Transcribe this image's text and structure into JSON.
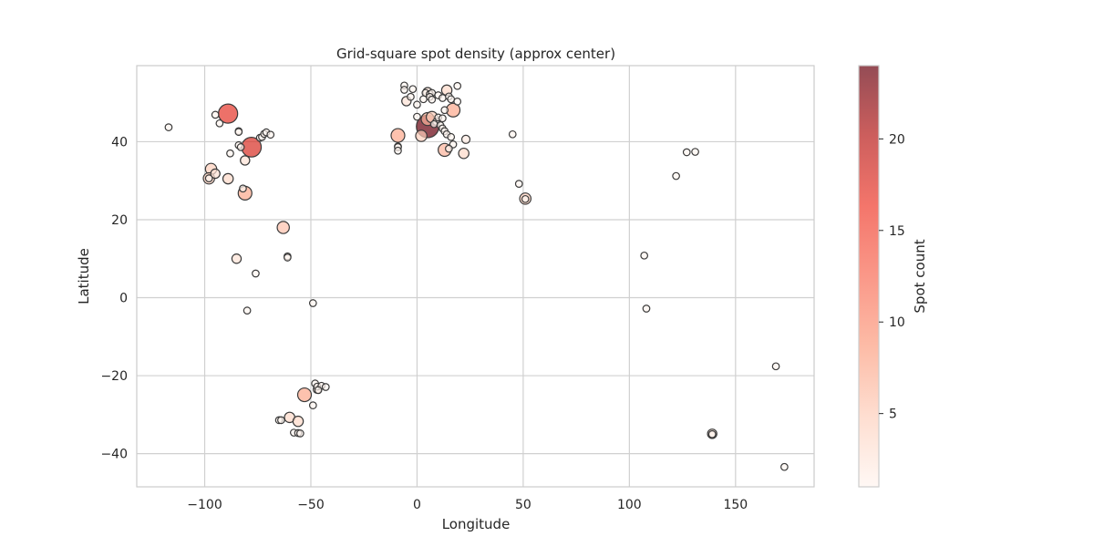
{
  "chart_data": {
    "type": "scatter",
    "title": "Grid-square spot density (approx center)",
    "xlabel": "Longitude",
    "ylabel": "Latitude",
    "xlim": [
      -132,
      187
    ],
    "ylim": [
      -48.5,
      59.5
    ],
    "xticks": [
      -100,
      -50,
      0,
      50,
      100,
      150
    ],
    "xtick_labels": [
      "−100",
      "−50",
      "0",
      "50",
      "100",
      "150"
    ],
    "yticks": [
      -40,
      -20,
      0,
      20,
      40
    ],
    "ytick_labels": [
      "−40",
      "−20",
      "0",
      "20",
      "40"
    ],
    "grid": true,
    "colorbar": {
      "label": "Spot count",
      "range": [
        1,
        24
      ],
      "ticks": [
        5,
        10,
        15,
        20
      ],
      "tick_labels": [
        "5",
        "10",
        "15",
        "20"
      ],
      "colors": [
        "#fff5f0",
        "#fdd0bd",
        "#fc9f81",
        "#f86c56",
        "#ef3b2c",
        "#b71a18",
        "#67000d"
      ],
      "alpha": 0.7
    },
    "points": [
      {
        "lon": -117,
        "lat": 43.7,
        "count": 1
      },
      {
        "lon": -95,
        "lat": 46.9,
        "count": 1
      },
      {
        "lon": -93,
        "lat": 44.7,
        "count": 1
      },
      {
        "lon": -89,
        "lat": 47.2,
        "count": 17
      },
      {
        "lon": -84,
        "lat": 42.7,
        "count": 1
      },
      {
        "lon": -84,
        "lat": 42.5,
        "count": 1
      },
      {
        "lon": -84,
        "lat": 39.1,
        "count": 1
      },
      {
        "lon": -83,
        "lat": 38.6,
        "count": 1
      },
      {
        "lon": -88,
        "lat": 37.0,
        "count": 1
      },
      {
        "lon": -81,
        "lat": 35.2,
        "count": 3
      },
      {
        "lon": -78,
        "lat": 38.6,
        "count": 18
      },
      {
        "lon": -74,
        "lat": 41.0,
        "count": 1
      },
      {
        "lon": -73,
        "lat": 41.2,
        "count": 1
      },
      {
        "lon": -72,
        "lat": 42.0,
        "count": 1
      },
      {
        "lon": -71,
        "lat": 42.4,
        "count": 1
      },
      {
        "lon": -69,
        "lat": 41.8,
        "count": 1
      },
      {
        "lon": -97,
        "lat": 33.0,
        "count": 5
      },
      {
        "lon": -95,
        "lat": 31.8,
        "count": 3
      },
      {
        "lon": -98,
        "lat": 30.6,
        "count": 5
      },
      {
        "lon": -98,
        "lat": 30.6,
        "count": 1
      },
      {
        "lon": -89,
        "lat": 30.5,
        "count": 4
      },
      {
        "lon": -82,
        "lat": 28.0,
        "count": 1
      },
      {
        "lon": -81,
        "lat": 26.8,
        "count": 8
      },
      {
        "lon": -63,
        "lat": 18.0,
        "count": 6
      },
      {
        "lon": -61,
        "lat": 10.6,
        "count": 1
      },
      {
        "lon": -61,
        "lat": 10.3,
        "count": 1
      },
      {
        "lon": -85,
        "lat": 10.0,
        "count": 3
      },
      {
        "lon": -76,
        "lat": 6.2,
        "count": 1
      },
      {
        "lon": -80,
        "lat": -3.3,
        "count": 1
      },
      {
        "lon": -49,
        "lat": -1.4,
        "count": 1
      },
      {
        "lon": -48,
        "lat": -22.0,
        "count": 1
      },
      {
        "lon": -47,
        "lat": -22.8,
        "count": 1
      },
      {
        "lon": -45,
        "lat": -22.6,
        "count": 1
      },
      {
        "lon": -43,
        "lat": -22.9,
        "count": 1
      },
      {
        "lon": -47,
        "lat": -23.5,
        "count": 2
      },
      {
        "lon": -46.5,
        "lat": -23.7,
        "count": 1
      },
      {
        "lon": -53,
        "lat": -24.9,
        "count": 8
      },
      {
        "lon": -49,
        "lat": -27.6,
        "count": 1
      },
      {
        "lon": -60,
        "lat": -30.7,
        "count": 4
      },
      {
        "lon": -65,
        "lat": -31.4,
        "count": 1
      },
      {
        "lon": -64,
        "lat": -31.4,
        "count": 1
      },
      {
        "lon": -56,
        "lat": -31.7,
        "count": 4
      },
      {
        "lon": -58,
        "lat": -34.6,
        "count": 1
      },
      {
        "lon": -56,
        "lat": -34.7,
        "count": 1
      },
      {
        "lon": -55,
        "lat": -34.8,
        "count": 1
      },
      {
        "lon": -6,
        "lat": 54.4,
        "count": 1
      },
      {
        "lon": -6,
        "lat": 53.3,
        "count": 1
      },
      {
        "lon": -2,
        "lat": 53.5,
        "count": 1
      },
      {
        "lon": -3,
        "lat": 51.5,
        "count": 1
      },
      {
        "lon": -5,
        "lat": 50.4,
        "count": 3
      },
      {
        "lon": 0,
        "lat": 49.5,
        "count": 1
      },
      {
        "lon": 3,
        "lat": 50.9,
        "count": 1
      },
      {
        "lon": 4,
        "lat": 52.5,
        "count": 1
      },
      {
        "lon": 5,
        "lat": 52.7,
        "count": 3
      },
      {
        "lon": 6,
        "lat": 52.2,
        "count": 1
      },
      {
        "lon": 7,
        "lat": 52.5,
        "count": 1
      },
      {
        "lon": 6,
        "lat": 51.5,
        "count": 1
      },
      {
        "lon": 7,
        "lat": 50.8,
        "count": 1
      },
      {
        "lon": 10,
        "lat": 51.9,
        "count": 1
      },
      {
        "lon": 12,
        "lat": 51.2,
        "count": 1
      },
      {
        "lon": 14,
        "lat": 53.2,
        "count": 4
      },
      {
        "lon": 15,
        "lat": 51.6,
        "count": 1
      },
      {
        "lon": 16,
        "lat": 50.9,
        "count": 1
      },
      {
        "lon": 19,
        "lat": 54.3,
        "count": 1
      },
      {
        "lon": 19,
        "lat": 50.3,
        "count": 1
      },
      {
        "lon": 17,
        "lat": 48.1,
        "count": 8
      },
      {
        "lon": 13,
        "lat": 48.1,
        "count": 1
      },
      {
        "lon": 0,
        "lat": 46.4,
        "count": 1
      },
      {
        "lon": 5,
        "lat": 45.8,
        "count": 7
      },
      {
        "lon": 7,
        "lat": 46.3,
        "count": 5
      },
      {
        "lon": 5,
        "lat": 43.9,
        "count": 24
      },
      {
        "lon": 9,
        "lat": 45.1,
        "count": 1
      },
      {
        "lon": 10,
        "lat": 46.2,
        "count": 1
      },
      {
        "lon": 12,
        "lat": 46.0,
        "count": 1
      },
      {
        "lon": 8,
        "lat": 44.5,
        "count": 1
      },
      {
        "lon": 11,
        "lat": 44.2,
        "count": 1
      },
      {
        "lon": 12,
        "lat": 43.4,
        "count": 1
      },
      {
        "lon": 13,
        "lat": 42.7,
        "count": 1
      },
      {
        "lon": 14,
        "lat": 41.9,
        "count": 1
      },
      {
        "lon": 16,
        "lat": 41.2,
        "count": 1
      },
      {
        "lon": 17,
        "lat": 39.3,
        "count": 1
      },
      {
        "lon": 15,
        "lat": 38.2,
        "count": 1
      },
      {
        "lon": -9,
        "lat": 41.6,
        "count": 8
      },
      {
        "lon": -9,
        "lat": 38.8,
        "count": 1
      },
      {
        "lon": -9,
        "lat": 38.6,
        "count": 1
      },
      {
        "lon": -9,
        "lat": 37.7,
        "count": 1
      },
      {
        "lon": 2,
        "lat": 41.5,
        "count": 5
      },
      {
        "lon": 13,
        "lat": 37.9,
        "count": 7
      },
      {
        "lon": 22,
        "lat": 37.0,
        "count": 4
      },
      {
        "lon": 23,
        "lat": 40.6,
        "count": 2
      },
      {
        "lon": 45,
        "lat": 41.9,
        "count": 1
      },
      {
        "lon": 48,
        "lat": 29.2,
        "count": 1
      },
      {
        "lon": 51,
        "lat": 25.4,
        "count": 5
      },
      {
        "lon": 51,
        "lat": 25.3,
        "count": 1
      },
      {
        "lon": 107,
        "lat": 10.8,
        "count": 1
      },
      {
        "lon": 108,
        "lat": -2.8,
        "count": 1
      },
      {
        "lon": 122,
        "lat": 31.2,
        "count": 1
      },
      {
        "lon": 127,
        "lat": 37.3,
        "count": 1
      },
      {
        "lon": 131,
        "lat": 37.4,
        "count": 1
      },
      {
        "lon": 139,
        "lat": -34.9,
        "count": 3
      },
      {
        "lon": 139,
        "lat": -35.0,
        "count": 1
      },
      {
        "lon": 169,
        "lat": -17.6,
        "count": 1
      },
      {
        "lon": 173,
        "lat": -43.4,
        "count": 1
      }
    ]
  }
}
